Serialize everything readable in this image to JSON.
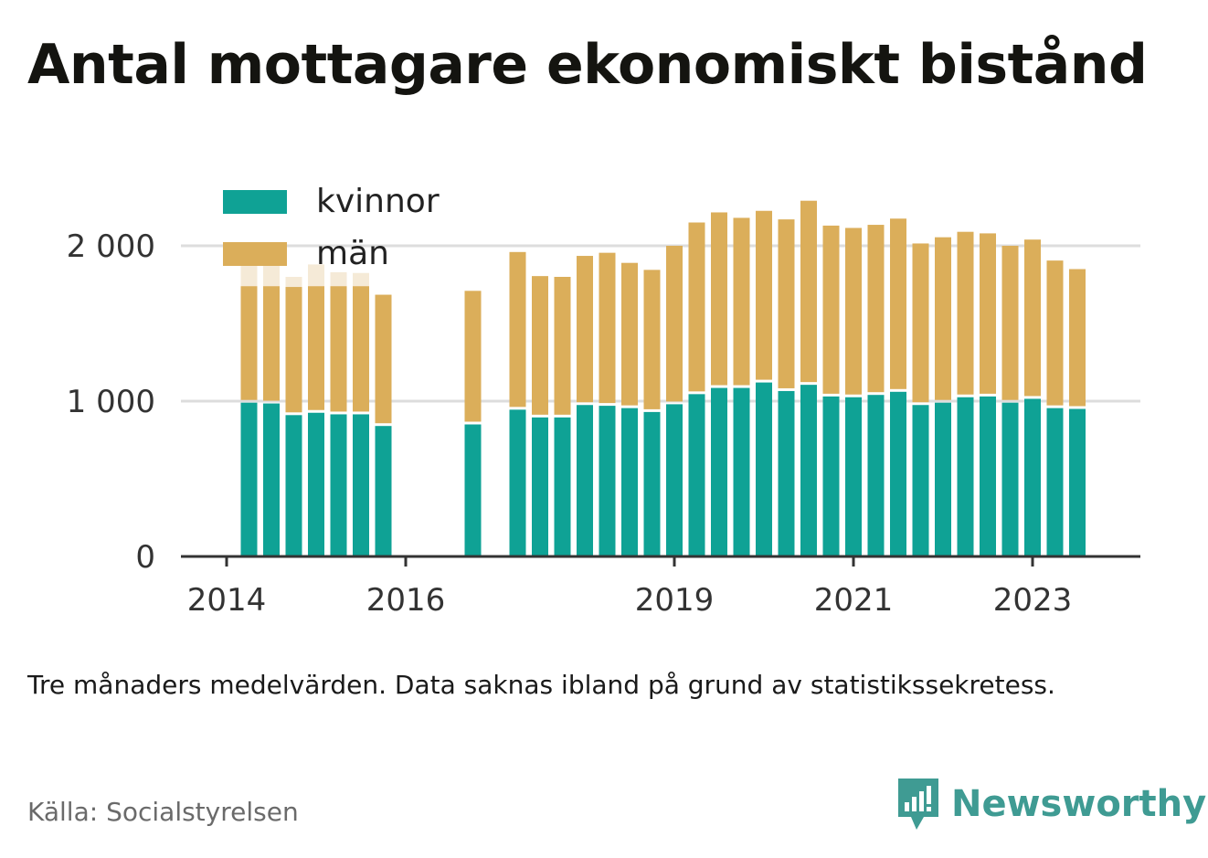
{
  "title": "Antal mottagare ekonomiskt bistånd",
  "note": "Tre månaders medelvärden. Data saknas ibland på grund av statistikssekretess.",
  "source": "Källa: Socialstyrelsen",
  "brand": {
    "name": "Newsworthy",
    "icon": "newsworthy-logo-icon",
    "color": "#3f9b93"
  },
  "colors": {
    "kvinnor": "#0fa295",
    "man": "#dbae5a",
    "axis": "#333333",
    "grid": "#dddddd"
  },
  "chart_data": {
    "type": "bar",
    "stacked": true,
    "grid": true,
    "legend_position": "top-left",
    "ylim": [
      0,
      2300
    ],
    "y_ticks": [
      0,
      1000,
      2000
    ],
    "y_tick_labels": [
      "0",
      "1 000",
      "2 000"
    ],
    "x_ticks": [
      2014,
      2016,
      2019,
      2021,
      2023
    ],
    "x_tick_labels": [
      "2014",
      "2016",
      "2019",
      "2021",
      "2023"
    ],
    "x": [
      2014.25,
      2014.5,
      2014.75,
      2015.0,
      2015.25,
      2015.5,
      2015.75,
      2016.75,
      2017.25,
      2017.5,
      2017.75,
      2018.0,
      2018.25,
      2018.5,
      2018.75,
      2019.0,
      2019.25,
      2019.5,
      2019.75,
      2020.0,
      2020.25,
      2020.5,
      2020.75,
      2021.0,
      2021.25,
      2021.5,
      2021.75,
      2022.0,
      2022.25,
      2022.5,
      2022.75,
      2023.0,
      2023.25,
      2023.5
    ],
    "series": [
      {
        "name": "kvinnor",
        "values": [
          990,
          985,
          910,
          925,
          915,
          915,
          840,
          850,
          945,
          895,
          895,
          975,
          970,
          955,
          930,
          980,
          1045,
          1085,
          1085,
          1120,
          1065,
          1105,
          1030,
          1025,
          1040,
          1060,
          975,
          990,
          1025,
          1030,
          990,
          1015,
          955,
          950
        ]
      },
      {
        "name": "män",
        "values": [
          750,
          755,
          825,
          815,
          825,
          825,
          845,
          860,
          1015,
          910,
          905,
          960,
          985,
          935,
          915,
          1020,
          1105,
          1130,
          1095,
          1105,
          1105,
          1185,
          1100,
          1090,
          1095,
          1115,
          1040,
          1065,
          1065,
          1050,
          1010,
          1025,
          950,
          900
        ]
      }
    ],
    "suppressed_totals": [
      {
        "x": 2014.25,
        "total": 1880
      },
      {
        "x": 2014.5,
        "total": 1880
      },
      {
        "x": 2014.75,
        "total": 1800
      },
      {
        "x": 2015.0,
        "total": 1880
      },
      {
        "x": 2015.25,
        "total": 1830
      },
      {
        "x": 2015.5,
        "total": 1825
      }
    ]
  }
}
